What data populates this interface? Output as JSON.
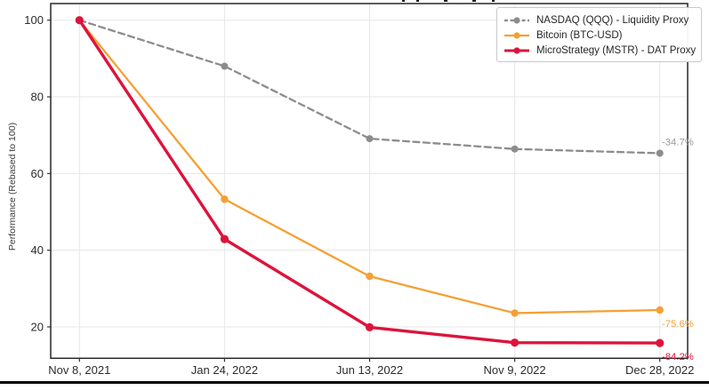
{
  "figure": {
    "background": "#ffffff",
    "spine_color": "#262626",
    "grid_color": "#e7e7e7",
    "bottom_bar_color": "#000000"
  },
  "chart_data": {
    "type": "line",
    "title": "",
    "xlabel": "",
    "ylabel": "Performance (Rebased to 100)",
    "categories": [
      "Nov 8, 2021",
      "Jan 24, 2022",
      "Jun 13, 2022",
      "Nov 9, 2022",
      "Dec 28, 2022"
    ],
    "yticks": [
      100,
      80,
      60,
      40,
      20
    ],
    "ylim": [
      11.8,
      104.3
    ],
    "grid": true,
    "legend_position": "upper right",
    "series": [
      {
        "name": "NASDAQ (QQQ) - Liquidity Proxy",
        "color": "#8C8C8C",
        "label_color": "#9a9a9a",
        "style": "dashed",
        "width": 2.3,
        "marker": "circle",
        "marker_r": 4,
        "values": [
          100,
          88.0,
          69.1,
          66.4,
          65.3
        ],
        "end_label": "-34.7%"
      },
      {
        "name": "Bitcoin (BTC-USD)",
        "color": "#F5A033",
        "label_color": "#F5A033",
        "style": "solid",
        "width": 2.3,
        "marker": "circle",
        "marker_r": 4.2,
        "values": [
          100,
          53.3,
          33.2,
          23.6,
          24.4
        ],
        "end_label": "-75.6%"
      },
      {
        "name": "MicroStrategy (MSTR) - DAT Proxy",
        "color": "#DC143C",
        "label_color": "#DC143C",
        "style": "solid",
        "width": 3.4,
        "marker": "circle",
        "marker_r": 4.6,
        "values": [
          100,
          42.9,
          19.9,
          15.9,
          15.8
        ],
        "end_label": "-84.2%"
      }
    ]
  }
}
